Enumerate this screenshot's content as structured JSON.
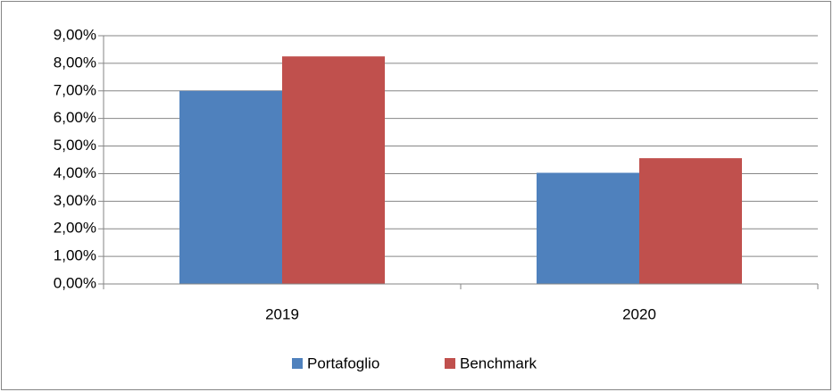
{
  "chart_data": {
    "type": "bar",
    "categories": [
      "2019",
      "2020"
    ],
    "series": [
      {
        "name": "Portafoglio",
        "color": "#4f81bd",
        "values": [
          7.0,
          4.03
        ]
      },
      {
        "name": "Benchmark",
        "color": "#c0504d",
        "values": [
          8.25,
          4.56
        ]
      }
    ],
    "ylim": [
      0,
      9
    ],
    "yticks": [
      {
        "value": 0,
        "label": "0,00%"
      },
      {
        "value": 1,
        "label": "1,00%"
      },
      {
        "value": 2,
        "label": "2,00%"
      },
      {
        "value": 3,
        "label": "3,00%"
      },
      {
        "value": 4,
        "label": "4,00%"
      },
      {
        "value": 5,
        "label": "5,00%"
      },
      {
        "value": 6,
        "label": "6,00%"
      },
      {
        "value": 7,
        "label": "7,00%"
      },
      {
        "value": 8,
        "label": "8,00%"
      },
      {
        "value": 9,
        "label": "9,00%"
      }
    ],
    "grid": true,
    "legend": "bottom"
  }
}
